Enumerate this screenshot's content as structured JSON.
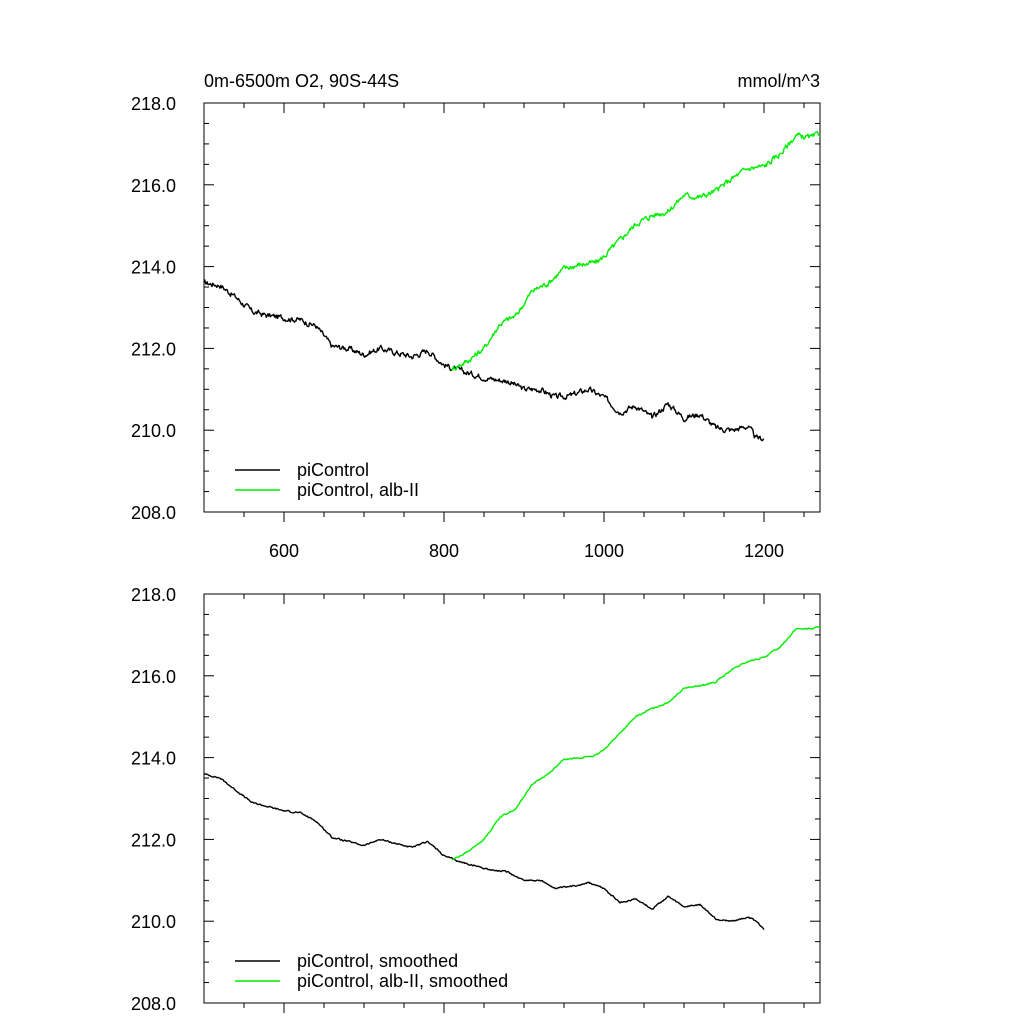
{
  "chart_data": [
    {
      "type": "line",
      "title": "0m-6500m O2, 90S-44S",
      "units": "mmol/m^3",
      "xlim": [
        500,
        1270
      ],
      "ylim": [
        208,
        218
      ],
      "xticks": [
        600,
        800,
        1000,
        1200
      ],
      "xtick_labels": [
        "600",
        "800",
        "1000",
        "1200"
      ],
      "yticks": [
        208,
        210,
        212,
        214,
        216,
        218
      ],
      "ytick_labels": [
        "208.0",
        "210.0",
        "212.0",
        "214.0",
        "216.0",
        "218.0"
      ],
      "legend_position": "bottom-left",
      "series": [
        {
          "name": "piControl",
          "color": "#000000",
          "x": [
            500,
            520,
            540,
            560,
            580,
            600,
            620,
            640,
            660,
            680,
            700,
            720,
            740,
            760,
            780,
            800,
            820,
            840,
            860,
            880,
            900,
            920,
            940,
            960,
            980,
            1000,
            1020,
            1040,
            1060,
            1080,
            1100,
            1120,
            1140,
            1160,
            1180,
            1190,
            1200
          ],
          "y": [
            213.6,
            213.55,
            213.25,
            212.9,
            212.8,
            212.75,
            212.7,
            212.55,
            212.05,
            212.0,
            211.85,
            212.0,
            211.9,
            211.8,
            211.95,
            211.6,
            211.45,
            211.35,
            211.25,
            211.2,
            211.0,
            211.0,
            210.8,
            210.85,
            211.0,
            210.8,
            210.45,
            210.6,
            210.3,
            210.65,
            210.3,
            210.4,
            210.05,
            210.0,
            210.1,
            209.8,
            209.8
          ],
          "noise": 0.06
        },
        {
          "name": "piControl, alb-II",
          "color": "#00ee00",
          "x": [
            810,
            830,
            850,
            870,
            890,
            910,
            930,
            950,
            970,
            990,
            1000,
            1020,
            1040,
            1060,
            1080,
            1100,
            1120,
            1140,
            1160,
            1180,
            1200,
            1220,
            1240,
            1260,
            1270
          ],
          "y": [
            211.5,
            211.7,
            212.0,
            212.6,
            212.8,
            213.4,
            213.6,
            213.95,
            214.05,
            214.1,
            214.25,
            214.65,
            215.05,
            215.25,
            215.35,
            215.75,
            215.7,
            215.85,
            216.15,
            216.4,
            216.45,
            216.75,
            217.2,
            217.15,
            217.25
          ],
          "noise": 0.06
        }
      ]
    },
    {
      "type": "line",
      "title": "",
      "units": "",
      "xlim": [
        500,
        1270
      ],
      "ylim": [
        208,
        218
      ],
      "xticks": [
        600,
        800,
        1000,
        1200
      ],
      "xtick_labels": [],
      "yticks": [
        208,
        210,
        212,
        214,
        216,
        218
      ],
      "ytick_labels": [
        "208.0",
        "210.0",
        "212.0",
        "214.0",
        "216.0",
        "218.0"
      ],
      "legend_position": "bottom-left",
      "series": [
        {
          "name": "piControl, smoothed",
          "color": "#000000",
          "x": [
            500,
            520,
            540,
            560,
            580,
            600,
            620,
            640,
            660,
            680,
            700,
            720,
            740,
            760,
            780,
            800,
            820,
            840,
            860,
            880,
            900,
            920,
            940,
            960,
            980,
            1000,
            1020,
            1040,
            1060,
            1080,
            1100,
            1120,
            1140,
            1160,
            1180,
            1190,
            1200
          ],
          "y": [
            213.6,
            213.5,
            213.2,
            212.9,
            212.8,
            212.7,
            212.65,
            212.45,
            212.05,
            211.95,
            211.85,
            212.0,
            211.9,
            211.8,
            211.95,
            211.6,
            211.45,
            211.35,
            211.25,
            211.2,
            211.0,
            211.0,
            210.8,
            210.85,
            210.95,
            210.8,
            210.45,
            210.55,
            210.3,
            210.6,
            210.35,
            210.4,
            210.05,
            210.0,
            210.1,
            210.0,
            209.8
          ],
          "noise": 0.015
        },
        {
          "name": "piControl, alb-II, smoothed",
          "color": "#00ee00",
          "x": [
            810,
            830,
            850,
            870,
            890,
            910,
            930,
            950,
            970,
            990,
            1000,
            1020,
            1040,
            1060,
            1080,
            1100,
            1120,
            1140,
            1160,
            1180,
            1200,
            1220,
            1240,
            1260,
            1270
          ],
          "y": [
            211.5,
            211.7,
            212.0,
            212.55,
            212.75,
            213.35,
            213.6,
            213.95,
            214.0,
            214.05,
            214.2,
            214.6,
            215.0,
            215.2,
            215.35,
            215.7,
            215.75,
            215.85,
            216.15,
            216.35,
            216.45,
            216.7,
            217.15,
            217.15,
            217.2
          ],
          "noise": 0.015
        }
      ]
    }
  ]
}
